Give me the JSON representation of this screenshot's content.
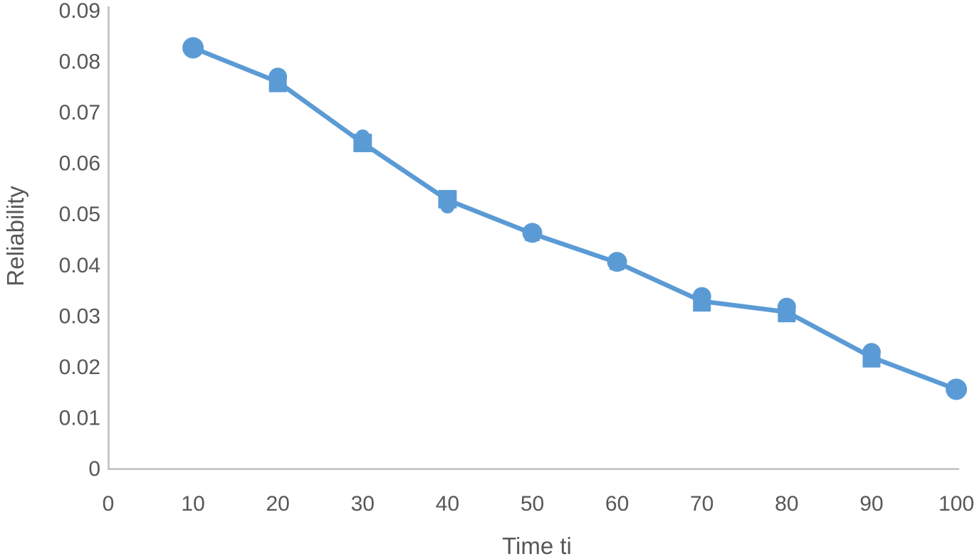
{
  "chart_data": {
    "type": "line",
    "title": "",
    "xlabel": "Time ti",
    "ylabel": "Reliability",
    "x": [
      10,
      20,
      30,
      40,
      50,
      60,
      70,
      80,
      90,
      100
    ],
    "series": [
      {
        "name": "Reliability",
        "values": [
          0.0827,
          0.076,
          0.064,
          0.0528,
          0.0462,
          0.0405,
          0.0329,
          0.0308,
          0.0219,
          0.0156
        ]
      }
    ],
    "xlim": [
      0,
      100
    ],
    "ylim": [
      0,
      0.09
    ],
    "xtick_labels": [
      "0",
      "10",
      "20",
      "30",
      "40",
      "50",
      "60",
      "70",
      "80",
      "90",
      "100"
    ],
    "ytick_labels": [
      "0",
      "0.01",
      "0.02",
      "0.03",
      "0.04",
      "0.05",
      "0.06",
      "0.07",
      "0.08",
      "0.09"
    ],
    "grid": false,
    "legend": "none",
    "marker_style": "overlapping square and circle markers (Excel-style union blobs)",
    "marker_shapes": [
      "circle",
      "dome-square",
      "square",
      "square-bottom-bump",
      "rounded-square",
      "rounded-square",
      "dome-square",
      "dome-square",
      "dome-square",
      "circle"
    ],
    "colors": {
      "line": "#5B9BD5",
      "marker": "#5B9BD5",
      "axis_line": "#BFBFBF",
      "tick_text": "#575757"
    }
  }
}
